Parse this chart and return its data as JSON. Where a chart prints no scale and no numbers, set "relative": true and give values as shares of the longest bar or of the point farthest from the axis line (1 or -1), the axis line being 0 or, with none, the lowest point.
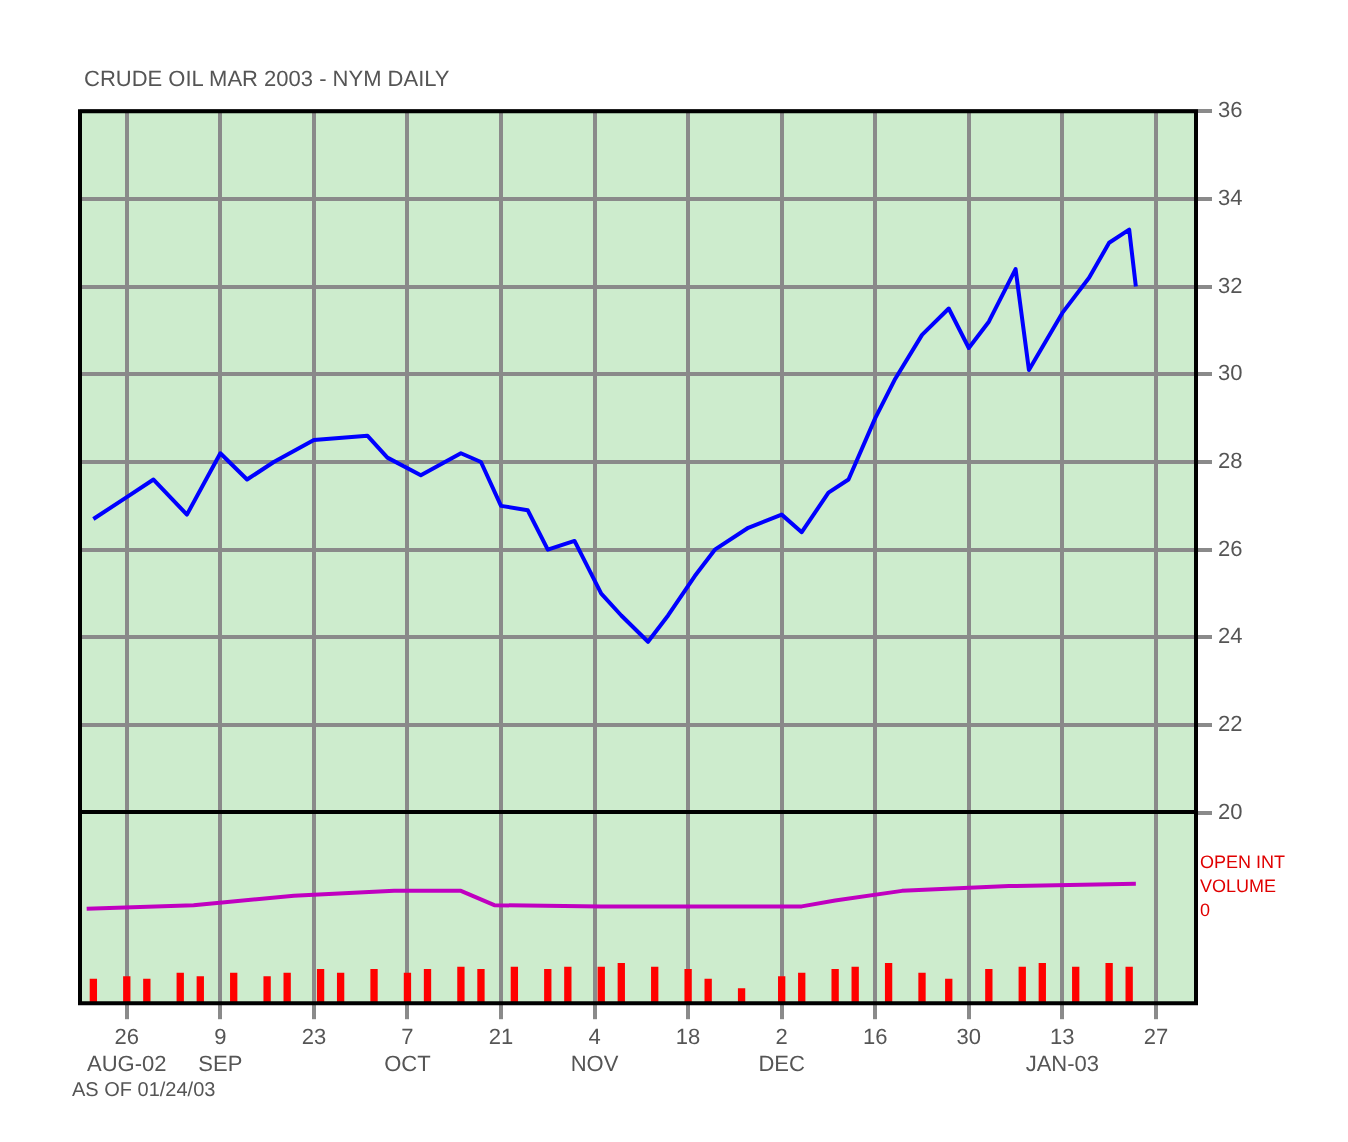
{
  "chart_data": [
    {
      "type": "line",
      "title": "CRUDE OIL MAR 2003 - NYM DAILY",
      "x": [
        "2002-08-21",
        "2002-08-26",
        "2002-08-30",
        "2002-09-04",
        "2002-09-09",
        "2002-09-13",
        "2002-09-17",
        "2002-09-23",
        "2002-10-01",
        "2002-10-04",
        "2002-10-09",
        "2002-10-15",
        "2002-10-18",
        "2002-10-21",
        "2002-10-25",
        "2002-10-28",
        "2002-11-01",
        "2002-11-05",
        "2002-11-08",
        "2002-11-12",
        "2002-11-15",
        "2002-11-19",
        "2002-11-22",
        "2002-11-27",
        "2002-12-02",
        "2002-12-05",
        "2002-12-09",
        "2002-12-12",
        "2002-12-16",
        "2002-12-19",
        "2002-12-23",
        "2002-12-27",
        "2002-12-30",
        "2003-01-02",
        "2003-01-06",
        "2003-01-08",
        "2003-01-13",
        "2003-01-17",
        "2003-01-20",
        "2003-01-23",
        "2003-01-24"
      ],
      "series": [
        {
          "color": "#0000ff",
          "values": [
            26.7,
            27.2,
            27.6,
            26.8,
            28.2,
            27.6,
            28.0,
            28.5,
            28.6,
            28.1,
            27.7,
            28.2,
            28.0,
            27.0,
            26.9,
            26.0,
            26.2,
            25.0,
            24.5,
            23.9,
            24.5,
            25.4,
            26.0,
            26.5,
            26.8,
            26.4,
            27.3,
            27.6,
            29.0,
            29.9,
            30.9,
            31.5,
            30.6,
            31.2,
            32.4,
            30.1,
            31.4,
            32.2,
            33.0,
            33.3,
            32.0
          ]
        }
      ],
      "xlim": [
        "2002-08-19",
        "2003-02-02"
      ],
      "xticks": [
        {
          "value": "2002-08-26",
          "label": null
        },
        {
          "value": "2002-09-09",
          "label": null
        },
        {
          "value": "2002-09-23",
          "label": null
        },
        {
          "value": "2002-10-07",
          "label": null
        },
        {
          "value": "2002-10-21",
          "label": null
        },
        {
          "value": "2002-11-04",
          "label": null
        },
        {
          "value": "2002-11-18",
          "label": null
        },
        {
          "value": "2002-12-02",
          "label": null
        },
        {
          "value": "2002-12-16",
          "label": null
        },
        {
          "value": "2002-12-30",
          "label": null
        },
        {
          "value": "2003-01-13",
          "label": null
        },
        {
          "value": "2003-01-27",
          "label": null
        }
      ],
      "ylim": [
        20,
        36
      ],
      "yticks": [
        20,
        22,
        24,
        26,
        28,
        30,
        32,
        34,
        36
      ],
      "tick_labels": "y",
      "grid": true,
      "legend": false,
      "marker": "none",
      "annotations": [
        "AS OF 01/24/03"
      ]
    },
    {
      "type": "bar",
      "relative": true,
      "series": [
        {
          "type": "line",
          "color": "#c000c0",
          "x": [
            "2002-08-20",
            "2002-09-05",
            "2002-09-20",
            "2002-10-05",
            "2002-10-15",
            "2002-10-20",
            "2002-11-05",
            "2002-11-20",
            "2002-12-05",
            "2002-12-10",
            "2002-12-20",
            "2003-01-05",
            "2003-01-24"
          ],
          "values": [
            0.79,
            0.82,
            0.9,
            0.94,
            0.94,
            0.82,
            0.81,
            0.81,
            0.81,
            0.86,
            0.94,
            0.98,
            1
          ]
        },
        {
          "color": "#ff0000",
          "x": [
            "2002-08-21",
            "2002-08-26",
            "2002-08-29",
            "2002-09-03",
            "2002-09-06",
            "2002-09-11",
            "2002-09-16",
            "2002-09-19",
            "2002-09-24",
            "2002-09-27",
            "2002-10-02",
            "2002-10-07",
            "2002-10-10",
            "2002-10-15",
            "2002-10-18",
            "2002-10-23",
            "2002-10-28",
            "2002-10-31",
            "2002-11-05",
            "2002-11-08",
            "2002-11-13",
            "2002-11-18",
            "2002-11-21",
            "2002-11-26",
            "2002-12-02",
            "2002-12-05",
            "2002-12-10",
            "2002-12-13",
            "2002-12-18",
            "2002-12-23",
            "2002-12-27",
            "2003-01-02",
            "2003-01-07",
            "2003-01-10",
            "2003-01-15",
            "2003-01-20",
            "2003-01-23"
          ],
          "values": [
            0.2,
            0.22,
            0.2,
            0.25,
            0.22,
            0.25,
            0.22,
            0.25,
            0.28,
            0.25,
            0.28,
            0.25,
            0.28,
            0.3,
            0.28,
            0.3,
            0.28,
            0.3,
            0.3,
            0.33,
            0.3,
            0.28,
            0.2,
            0.12,
            0.22,
            0.25,
            0.28,
            0.3,
            0.33,
            0.25,
            0.2,
            0.28,
            0.3,
            0.33,
            0.3,
            0.33,
            0.3
          ]
        }
      ],
      "xlim": [
        "2002-08-19",
        "2003-02-02"
      ],
      "xticks": [
        {
          "value": "2002-08-26",
          "label": "26 AUG-02"
        },
        {
          "value": "2002-09-09",
          "label": "9 SEP"
        },
        {
          "value": "2002-09-23",
          "label": "23"
        },
        {
          "value": "2002-10-07",
          "label": "7 OCT"
        },
        {
          "value": "2002-10-21",
          "label": "21"
        },
        {
          "value": "2002-11-04",
          "label": "4 NOV"
        },
        {
          "value": "2002-11-18",
          "label": "18"
        },
        {
          "value": "2002-12-02",
          "label": "2 DEC"
        },
        {
          "value": "2002-12-16",
          "label": "16"
        },
        {
          "value": "2002-12-30",
          "label": "30"
        },
        {
          "value": "2003-01-13",
          "label": "13 JAN-03"
        },
        {
          "value": "2003-01-27",
          "label": "27"
        }
      ],
      "tick_labels": "x",
      "grid": true,
      "legend": false,
      "marker": "none",
      "annotations": [
        "OPEN INT",
        "VOLUME",
        "0"
      ]
    }
  ]
}
